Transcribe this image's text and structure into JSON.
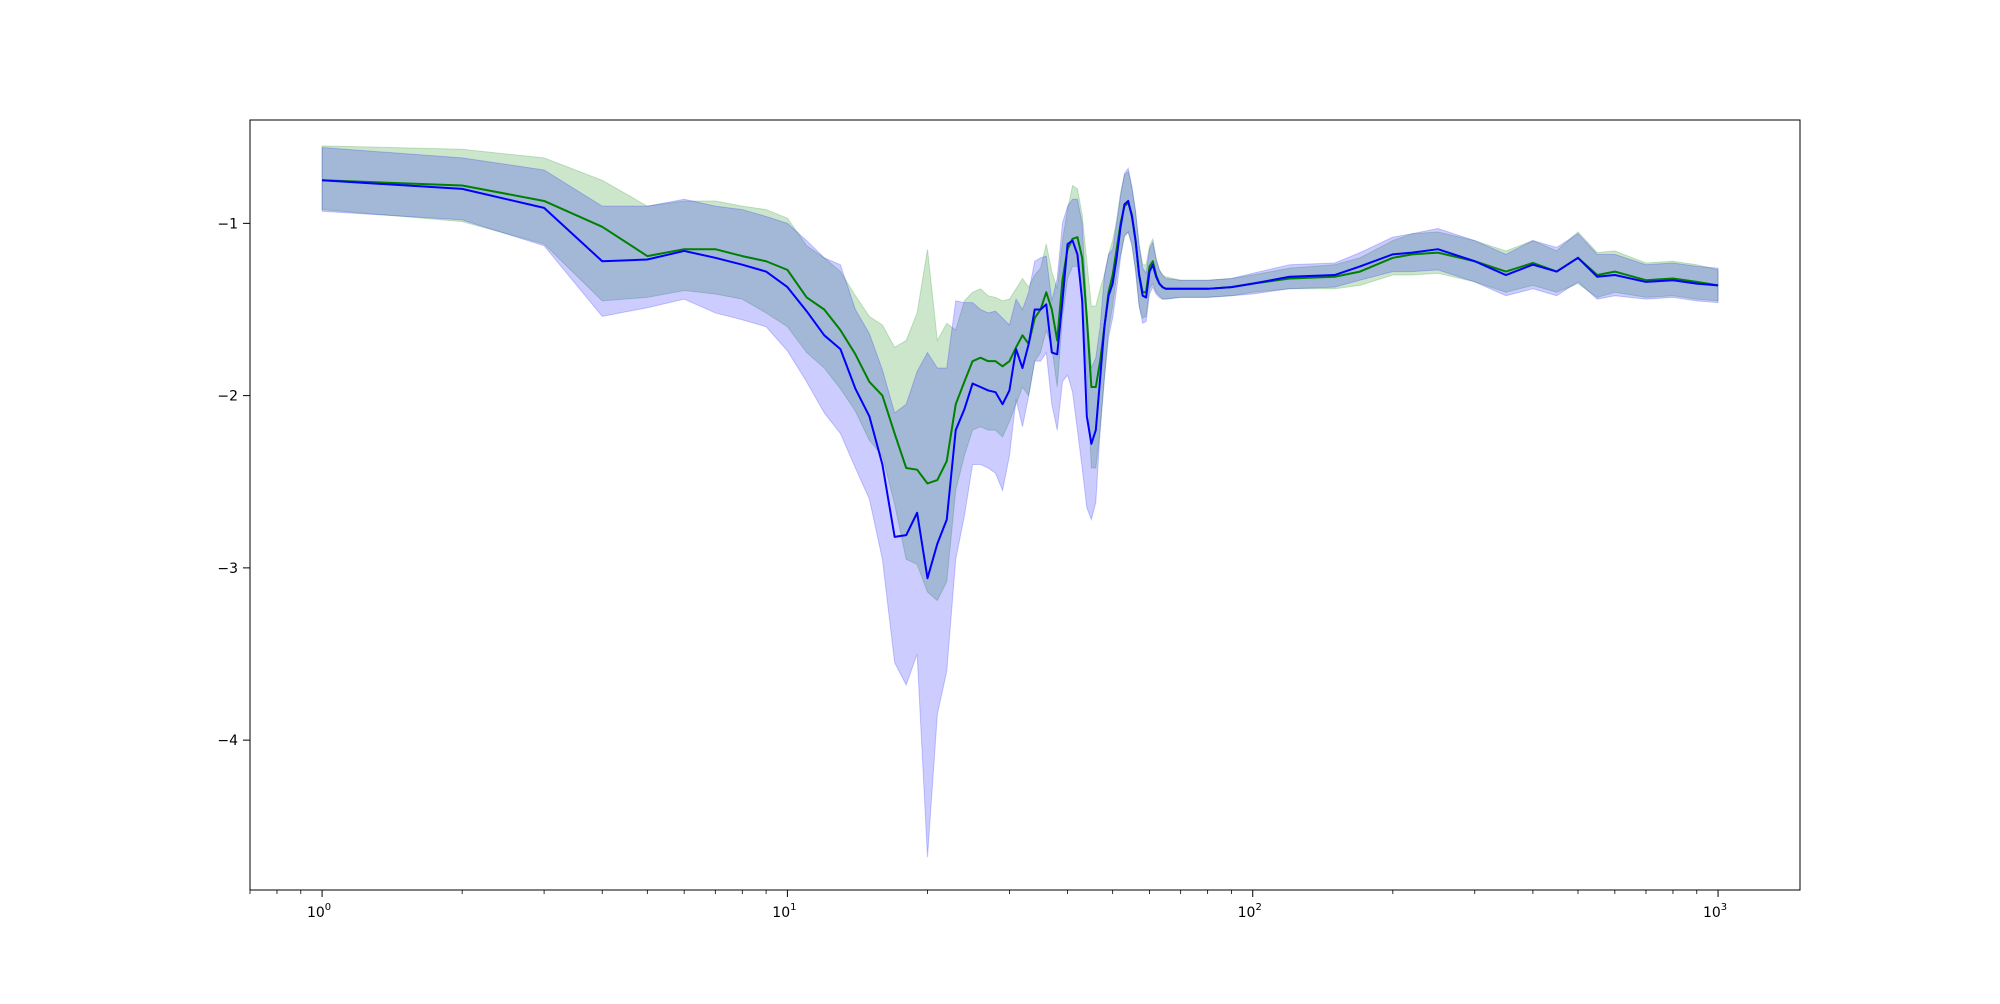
{
  "chart_data": {
    "type": "line",
    "title": "",
    "xlabel": "",
    "ylabel": "",
    "x_scale": "log",
    "xlim": [
      0.7,
      1500
    ],
    "ylim": [
      -4.87,
      -0.4
    ],
    "xticks": [
      {
        "value": 1,
        "base": "10",
        "exp": "0"
      },
      {
        "value": 10,
        "base": "10",
        "exp": "1"
      },
      {
        "value": 100,
        "base": "10",
        "exp": "2"
      },
      {
        "value": 1000,
        "base": "10",
        "exp": "3"
      }
    ],
    "yticks": [
      {
        "value": -1,
        "label": "−1"
      },
      {
        "value": -2,
        "label": "−2"
      },
      {
        "value": -3,
        "label": "−3"
      },
      {
        "value": -4,
        "label": "−4"
      }
    ],
    "grid": false,
    "legend": "none",
    "series": [
      {
        "color": "#008000",
        "band_color": "#008000",
        "band_opacity": 0.2,
        "x": [
          1,
          2,
          3,
          4,
          5,
          6,
          7,
          8,
          9,
          10,
          11,
          12,
          13,
          14,
          15,
          16,
          17,
          18,
          19,
          20,
          21,
          22,
          23,
          24,
          25,
          26,
          27,
          28,
          29,
          30,
          31,
          32,
          33,
          34,
          35,
          36,
          37,
          38,
          39,
          40,
          41,
          42,
          43,
          44,
          45,
          46,
          47,
          48,
          49,
          50,
          51,
          52,
          53,
          54,
          55,
          56,
          57,
          58,
          59,
          60,
          61,
          62,
          63,
          64,
          65,
          70,
          80,
          90,
          100,
          120,
          150,
          170,
          200,
          220,
          250,
          300,
          350,
          400,
          450,
          500,
          550,
          600,
          700,
          800,
          900,
          1000
        ],
        "y": [
          -0.75,
          -0.78,
          -0.87,
          -1.02,
          -1.19,
          -1.15,
          -1.15,
          -1.19,
          -1.22,
          -1.27,
          -1.43,
          -1.5,
          -1.62,
          -1.76,
          -1.92,
          -2.0,
          -2.22,
          -2.42,
          -2.43,
          -2.51,
          -2.49,
          -2.38,
          -2.05,
          -1.92,
          -1.8,
          -1.78,
          -1.8,
          -1.8,
          -1.83,
          -1.8,
          -1.72,
          -1.65,
          -1.7,
          -1.55,
          -1.5,
          -1.4,
          -1.5,
          -1.68,
          -1.33,
          -1.15,
          -1.09,
          -1.08,
          -1.2,
          -1.55,
          -1.95,
          -1.95,
          -1.8,
          -1.6,
          -1.4,
          -1.3,
          -1.15,
          -1.0,
          -0.9,
          -0.88,
          -0.95,
          -1.1,
          -1.3,
          -1.4,
          -1.4,
          -1.25,
          -1.22,
          -1.3,
          -1.35,
          -1.37,
          -1.38,
          -1.38,
          -1.38,
          -1.37,
          -1.35,
          -1.32,
          -1.31,
          -1.28,
          -1.2,
          -1.18,
          -1.17,
          -1.22,
          -1.28,
          -1.23,
          -1.28,
          -1.2,
          -1.3,
          -1.28,
          -1.33,
          -1.32,
          -1.34,
          -1.36
        ],
        "lower": [
          -0.92,
          -0.99,
          -1.12,
          -1.45,
          -1.43,
          -1.39,
          -1.41,
          -1.44,
          -1.52,
          -1.6,
          -1.75,
          -1.84,
          -1.96,
          -2.09,
          -2.26,
          -2.35,
          -2.63,
          -2.95,
          -2.98,
          -3.14,
          -3.19,
          -3.08,
          -2.55,
          -2.35,
          -2.2,
          -2.18,
          -2.2,
          -2.2,
          -2.24,
          -2.15,
          -2.05,
          -1.95,
          -2.0,
          -1.8,
          -1.75,
          -1.62,
          -1.72,
          -1.95,
          -1.55,
          -1.32,
          -1.25,
          -1.25,
          -1.4,
          -1.88,
          -2.42,
          -2.42,
          -2.2,
          -1.9,
          -1.62,
          -1.48,
          -1.3,
          -1.18,
          -1.08,
          -1.05,
          -1.12,
          -1.28,
          -1.48,
          -1.55,
          -1.54,
          -1.38,
          -1.35,
          -1.4,
          -1.42,
          -1.44,
          -1.44,
          -1.43,
          -1.43,
          -1.42,
          -1.4,
          -1.38,
          -1.38,
          -1.36,
          -1.3,
          -1.3,
          -1.29,
          -1.34,
          -1.4,
          -1.36,
          -1.4,
          -1.35,
          -1.43,
          -1.4,
          -1.43,
          -1.42,
          -1.44,
          -1.45
        ],
        "upper": [
          -0.55,
          -0.57,
          -0.62,
          -0.75,
          -0.9,
          -0.87,
          -0.87,
          -0.9,
          -0.92,
          -0.97,
          -1.13,
          -1.2,
          -1.28,
          -1.42,
          -1.54,
          -1.59,
          -1.72,
          -1.68,
          -1.52,
          -1.15,
          -1.68,
          -1.58,
          -1.62,
          -1.45,
          -1.4,
          -1.38,
          -1.42,
          -1.43,
          -1.45,
          -1.44,
          -1.38,
          -1.32,
          -1.37,
          -1.3,
          -1.26,
          -1.12,
          -1.28,
          -1.38,
          -1.1,
          -0.92,
          -0.78,
          -0.8,
          -0.95,
          -1.22,
          -1.48,
          -1.48,
          -1.38,
          -1.3,
          -1.18,
          -1.1,
          -0.98,
          -0.82,
          -0.72,
          -0.7,
          -0.79,
          -0.93,
          -1.13,
          -1.24,
          -1.24,
          -1.13,
          -1.09,
          -1.2,
          -1.27,
          -1.3,
          -1.31,
          -1.33,
          -1.33,
          -1.32,
          -1.3,
          -1.26,
          -1.24,
          -1.2,
          -1.1,
          -1.06,
          -1.05,
          -1.1,
          -1.16,
          -1.1,
          -1.16,
          -1.05,
          -1.17,
          -1.16,
          -1.23,
          -1.22,
          -1.24,
          -1.27
        ]
      },
      {
        "color": "#0000ff",
        "band_color": "#0000ff",
        "band_opacity": 0.2,
        "x": [
          1,
          2,
          3,
          4,
          5,
          6,
          7,
          8,
          9,
          10,
          11,
          12,
          13,
          14,
          15,
          16,
          17,
          18,
          19,
          20,
          21,
          22,
          23,
          24,
          25,
          26,
          27,
          28,
          29,
          30,
          31,
          32,
          33,
          34,
          35,
          36,
          37,
          38,
          39,
          40,
          41,
          42,
          43,
          44,
          45,
          46,
          47,
          48,
          49,
          50,
          51,
          52,
          53,
          54,
          55,
          56,
          57,
          58,
          59,
          60,
          61,
          62,
          63,
          64,
          65,
          70,
          80,
          90,
          100,
          120,
          150,
          170,
          200,
          220,
          250,
          300,
          350,
          400,
          450,
          500,
          550,
          600,
          700,
          800,
          900,
          1000
        ],
        "y": [
          -0.75,
          -0.8,
          -0.91,
          -1.22,
          -1.21,
          -1.16,
          -1.2,
          -1.24,
          -1.28,
          -1.37,
          -1.51,
          -1.65,
          -1.73,
          -1.96,
          -2.12,
          -2.4,
          -2.82,
          -2.81,
          -2.68,
          -3.06,
          -2.86,
          -2.72,
          -2.2,
          -2.08,
          -1.93,
          -1.95,
          -1.97,
          -1.98,
          -2.05,
          -1.97,
          -1.73,
          -1.84,
          -1.7,
          -1.5,
          -1.5,
          -1.47,
          -1.75,
          -1.76,
          -1.45,
          -1.12,
          -1.1,
          -1.18,
          -1.45,
          -2.12,
          -2.28,
          -2.2,
          -1.9,
          -1.6,
          -1.42,
          -1.35,
          -1.2,
          -1.02,
          -0.89,
          -0.87,
          -0.96,
          -1.1,
          -1.3,
          -1.42,
          -1.43,
          -1.28,
          -1.24,
          -1.31,
          -1.35,
          -1.37,
          -1.38,
          -1.38,
          -1.38,
          -1.37,
          -1.35,
          -1.31,
          -1.3,
          -1.25,
          -1.18,
          -1.17,
          -1.15,
          -1.22,
          -1.3,
          -1.24,
          -1.28,
          -1.2,
          -1.31,
          -1.3,
          -1.34,
          -1.33,
          -1.35,
          -1.36
        ],
        "lower": [
          -0.93,
          -0.98,
          -1.13,
          -1.54,
          -1.49,
          -1.44,
          -1.52,
          -1.56,
          -1.6,
          -1.74,
          -1.92,
          -2.1,
          -2.22,
          -2.42,
          -2.6,
          -2.95,
          -3.55,
          -3.68,
          -3.5,
          -4.68,
          -3.85,
          -3.6,
          -2.95,
          -2.7,
          -2.4,
          -2.4,
          -2.42,
          -2.45,
          -2.55,
          -2.35,
          -2.02,
          -2.18,
          -2.0,
          -1.8,
          -1.8,
          -1.75,
          -2.05,
          -2.2,
          -1.92,
          -1.88,
          -1.98,
          -2.2,
          -2.42,
          -2.65,
          -2.72,
          -2.62,
          -2.2,
          -1.9,
          -1.66,
          -1.55,
          -1.38,
          -1.2,
          -1.07,
          -1.05,
          -1.13,
          -1.27,
          -1.48,
          -1.58,
          -1.57,
          -1.41,
          -1.37,
          -1.41,
          -1.43,
          -1.44,
          -1.44,
          -1.43,
          -1.43,
          -1.42,
          -1.41,
          -1.38,
          -1.37,
          -1.33,
          -1.28,
          -1.28,
          -1.27,
          -1.34,
          -1.42,
          -1.38,
          -1.42,
          -1.34,
          -1.44,
          -1.42,
          -1.44,
          -1.43,
          -1.45,
          -1.46
        ],
        "upper": [
          -0.56,
          -0.62,
          -0.69,
          -0.9,
          -0.9,
          -0.86,
          -0.9,
          -0.92,
          -0.96,
          -1.0,
          -1.1,
          -1.2,
          -1.24,
          -1.5,
          -1.64,
          -1.85,
          -2.1,
          -2.05,
          -1.86,
          -1.75,
          -1.84,
          -1.84,
          -1.45,
          -1.46,
          -1.46,
          -1.5,
          -1.52,
          -1.51,
          -1.55,
          -1.59,
          -1.44,
          -1.5,
          -1.4,
          -1.22,
          -1.2,
          -1.19,
          -1.45,
          -1.32,
          -1.0,
          -0.9,
          -0.86,
          -0.86,
          -1.0,
          -1.5,
          -1.84,
          -1.78,
          -1.6,
          -1.3,
          -1.18,
          -1.15,
          -1.0,
          -0.84,
          -0.71,
          -0.68,
          -0.79,
          -0.93,
          -1.12,
          -1.26,
          -1.29,
          -1.15,
          -1.11,
          -1.21,
          -1.27,
          -1.3,
          -1.32,
          -1.33,
          -1.33,
          -1.32,
          -1.29,
          -1.24,
          -1.23,
          -1.17,
          -1.08,
          -1.06,
          -1.03,
          -1.1,
          -1.18,
          -1.1,
          -1.14,
          -1.06,
          -1.18,
          -1.18,
          -1.24,
          -1.23,
          -1.25,
          -1.26
        ]
      }
    ]
  }
}
